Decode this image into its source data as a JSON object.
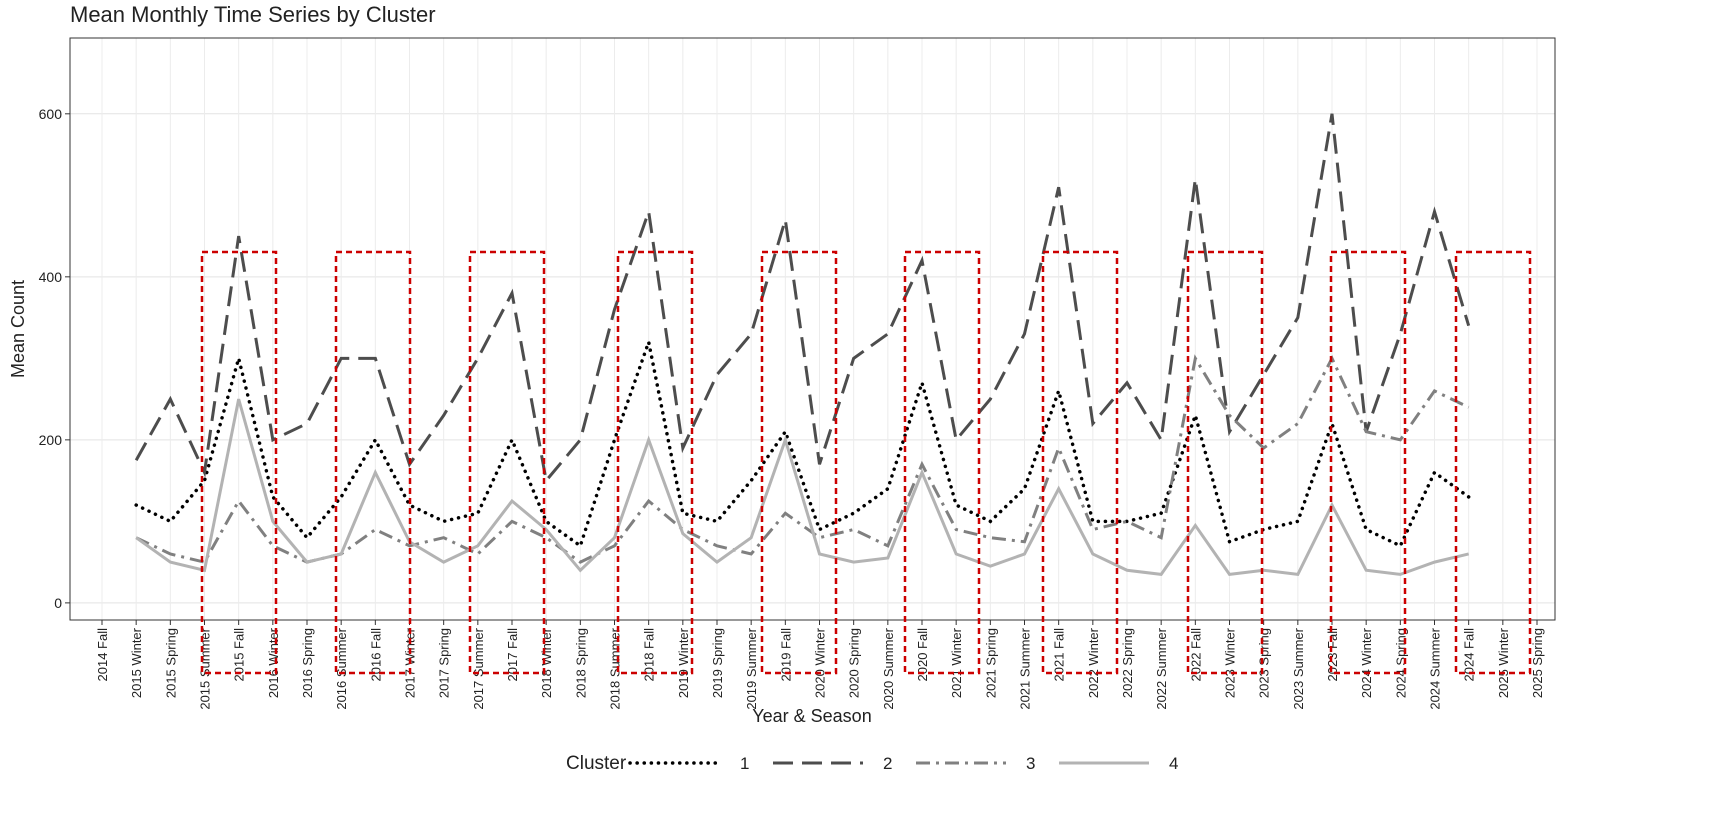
{
  "chart_data": {
    "type": "line",
    "title": "Mean Monthly Time Series by Cluster",
    "x_label": "Year & Season",
    "y_label": "Mean Count",
    "legend_title": "Cluster",
    "legend_position": "bottom",
    "grid": true,
    "categories": [
      "2014 Fall",
      "2015 Winter",
      "2015 Spring",
      "2015 Summer",
      "2015 Fall",
      "2016 Winter",
      "2016 Spring",
      "2016 Summer",
      "2016 Fall",
      "2017 Winter",
      "2017 Spring",
      "2017 Summer",
      "2017 Fall",
      "2018 Winter",
      "2018 Spring",
      "2018 Summer",
      "2018 Fall",
      "2019 Winter",
      "2019 Spring",
      "2019 Summer",
      "2019 Fall",
      "2020 Winter",
      "2020 Spring",
      "2020 Summer",
      "2020 Fall",
      "2021 Winter",
      "2021 Spring",
      "2021 Summer",
      "2021 Fall",
      "2022 Winter",
      "2022 Spring",
      "2022 Summer",
      "2022 Fall",
      "2023 Winter",
      "2023 Spring",
      "2023 Summer",
      "2023 Fall",
      "2024 Winter",
      "2024 Spring",
      "2024 Summer",
      "2024 Fall",
      "2025 Winter",
      "2025 Spring"
    ],
    "ylim": [
      -21,
      693
    ],
    "yticks": [
      0,
      200,
      400,
      600
    ],
    "series": [
      {
        "name": "1",
        "color": "#000000",
        "dash": "dotted",
        "values": [
          null,
          120,
          100,
          150,
          300,
          130,
          80,
          130,
          200,
          120,
          100,
          110,
          200,
          100,
          70,
          200,
          320,
          110,
          100,
          150,
          210,
          90,
          110,
          140,
          270,
          120,
          100,
          140,
          260,
          100,
          100,
          110,
          230,
          75,
          90,
          100,
          220,
          90,
          70,
          160,
          130,
          null,
          null
        ]
      },
      {
        "name": "2",
        "color": "#4d4d4d",
        "dash": "longdash",
        "values": [
          null,
          175,
          250,
          160,
          450,
          200,
          220,
          300,
          300,
          170,
          230,
          300,
          380,
          150,
          200,
          360,
          480,
          190,
          280,
          330,
          470,
          170,
          300,
          330,
          420,
          200,
          250,
          330,
          510,
          220,
          270,
          200,
          520,
          210,
          280,
          350,
          600,
          210,
          330,
          480,
          340,
          null,
          null
        ]
      },
      {
        "name": "3",
        "color": "#808080",
        "dash": "dashdot",
        "values": [
          null,
          80,
          60,
          50,
          125,
          70,
          50,
          60,
          90,
          70,
          80,
          60,
          100,
          80,
          50,
          70,
          125,
          90,
          70,
          60,
          110,
          80,
          90,
          70,
          170,
          90,
          80,
          75,
          190,
          90,
          100,
          80,
          300,
          230,
          190,
          220,
          300,
          210,
          200,
          260,
          240,
          null,
          null
        ]
      },
      {
        "name": "4",
        "color": "#b3b3b3",
        "dash": "solid",
        "values": [
          null,
          80,
          50,
          40,
          250,
          100,
          50,
          60,
          160,
          75,
          50,
          70,
          125,
          90,
          40,
          80,
          200,
          85,
          50,
          80,
          200,
          60,
          50,
          55,
          160,
          60,
          45,
          60,
          140,
          60,
          40,
          35,
          95,
          35,
          40,
          35,
          120,
          40,
          35,
          50,
          60,
          null,
          null
        ]
      }
    ]
  }
}
